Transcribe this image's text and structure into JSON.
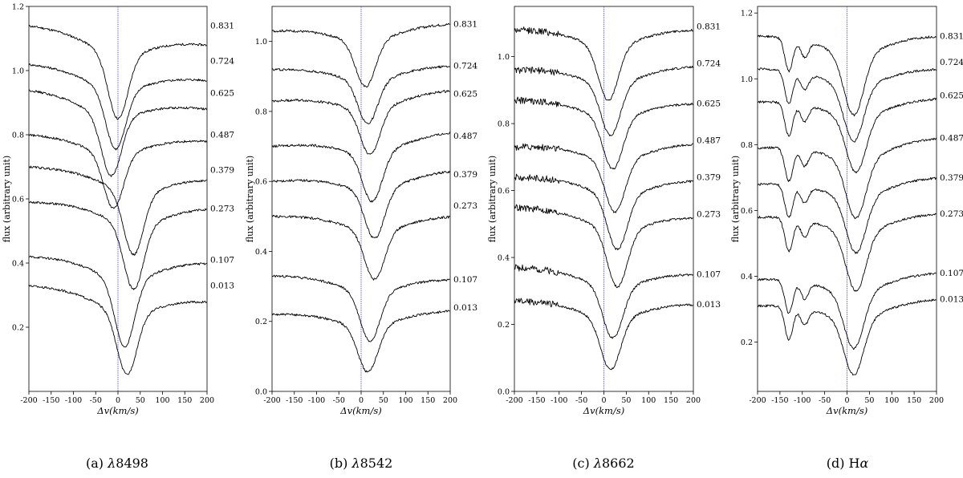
{
  "chart_data": [
    {
      "type": "line",
      "caption": "(a) λ8498",
      "caption_prefix": "(a) ",
      "caption_symbol": "λ",
      "caption_suffix": "8498",
      "xlabel": "Δv(km/s)",
      "ylabel": "flux (arbitrary unit)",
      "xlim": [
        -200,
        200
      ],
      "ylim": [
        0,
        1.2
      ],
      "xticks": [
        -200,
        -150,
        -100,
        -50,
        0,
        50,
        100,
        150,
        200
      ],
      "yticks": [
        0.2,
        0.4,
        0.6,
        0.8,
        1.0,
        1.2
      ],
      "ytick_labels": [
        "0.2",
        "0.4",
        "0.6",
        "0.8",
        "1.0",
        "1.2"
      ],
      "reference_line_x": 0,
      "line_center": 25,
      "line_width": 25,
      "series": [
        {
          "name": "0.831",
          "continuum": 1.14,
          "continuum_right": 1.08,
          "depth": 0.26,
          "center": 0,
          "label_y": 1.14
        },
        {
          "name": "0.724",
          "continuum": 1.02,
          "continuum_right": 0.97,
          "depth": 0.24,
          "center": -5,
          "label_y": 1.03
        },
        {
          "name": "0.625",
          "continuum": 0.94,
          "continuum_right": 0.88,
          "depth": 0.24,
          "center": -15,
          "label_y": 0.93
        },
        {
          "name": "0.487",
          "continuum": 0.8,
          "continuum_right": 0.78,
          "depth": 0.22,
          "center": -10,
          "label_y": 0.8
        },
        {
          "name": "0.379",
          "continuum": 0.7,
          "continuum_right": 0.66,
          "depth": 0.25,
          "center": 35,
          "label_y": 0.69
        },
        {
          "name": "0.273",
          "continuum": 0.59,
          "continuum_right": 0.57,
          "depth": 0.26,
          "center": 35,
          "label_y": 0.57
        },
        {
          "name": "0.107",
          "continuum": 0.42,
          "continuum_right": 0.4,
          "depth": 0.27,
          "center": 15,
          "label_y": 0.41
        },
        {
          "name": "0.013",
          "continuum": 0.33,
          "continuum_right": 0.28,
          "depth": 0.25,
          "center": 20,
          "label_y": 0.33
        }
      ]
    },
    {
      "type": "line",
      "caption": "(b) λ8542",
      "caption_prefix": "(b) ",
      "caption_symbol": "λ",
      "caption_suffix": "8542",
      "xlabel": "Δv(km/s)",
      "ylabel": "flux (arbitrary unit)",
      "xlim": [
        -200,
        200
      ],
      "ylim": [
        0,
        1.1
      ],
      "xticks": [
        -200,
        -150,
        -100,
        -50,
        0,
        50,
        100,
        150,
        200
      ],
      "yticks": [
        0.0,
        0.2,
        0.4,
        0.6,
        0.8,
        1.0
      ],
      "ytick_labels": [
        "0.0",
        "0.2",
        "0.4",
        "0.6",
        "0.8",
        "1.0"
      ],
      "reference_line_x": 0,
      "series": [
        {
          "name": "0.831",
          "continuum": 1.03,
          "continuum_right": 1.05,
          "depth": 0.17,
          "center": 10,
          "label_y": 1.05
        },
        {
          "name": "0.724",
          "continuum": 0.92,
          "continuum_right": 0.93,
          "depth": 0.16,
          "center": 15,
          "label_y": 0.93
        },
        {
          "name": "0.625",
          "continuum": 0.83,
          "continuum_right": 0.86,
          "depth": 0.17,
          "center": 20,
          "label_y": 0.85
        },
        {
          "name": "0.487",
          "continuum": 0.7,
          "continuum_right": 0.74,
          "depth": 0.18,
          "center": 25,
          "label_y": 0.73
        },
        {
          "name": "0.379",
          "continuum": 0.6,
          "continuum_right": 0.63,
          "depth": 0.18,
          "center": 30,
          "label_y": 0.62
        },
        {
          "name": "0.273",
          "continuum": 0.5,
          "continuum_right": 0.5,
          "depth": 0.18,
          "center": 30,
          "label_y": 0.53
        },
        {
          "name": "0.107",
          "continuum": 0.33,
          "continuum_right": 0.32,
          "depth": 0.18,
          "center": 20,
          "label_y": 0.32
        },
        {
          "name": "0.013",
          "continuum": 0.22,
          "continuum_right": 0.23,
          "depth": 0.17,
          "center": 15,
          "label_y": 0.24
        }
      ]
    },
    {
      "type": "line",
      "caption": "(c) λ8662",
      "caption_prefix": "(c) ",
      "caption_symbol": "λ",
      "caption_suffix": "8662",
      "xlabel": "Δv(km/s)",
      "ylabel": "flux (arbitrary unit)",
      "xlim": [
        -200,
        200
      ],
      "ylim": [
        0,
        1.15
      ],
      "xticks": [
        -200,
        -150,
        -100,
        -50,
        0,
        50,
        100,
        150,
        200
      ],
      "yticks": [
        0.0,
        0.2,
        0.4,
        0.6,
        0.8,
        1.0
      ],
      "ytick_labels": [
        "0.0",
        "0.2",
        "0.4",
        "0.6",
        "0.8",
        "1.0"
      ],
      "reference_line_x": 0,
      "series": [
        {
          "name": "0.831",
          "continuum": 1.08,
          "continuum_right": 1.08,
          "depth": 0.21,
          "center": 10,
          "label_y": 1.09
        },
        {
          "name": "0.724",
          "continuum": 0.96,
          "continuum_right": 0.97,
          "depth": 0.2,
          "center": 15,
          "label_y": 0.98
        },
        {
          "name": "0.625",
          "continuum": 0.87,
          "continuum_right": 0.86,
          "depth": 0.2,
          "center": 20,
          "label_y": 0.86
        },
        {
          "name": "0.487",
          "continuum": 0.73,
          "continuum_right": 0.74,
          "depth": 0.2,
          "center": 25,
          "label_y": 0.75
        },
        {
          "name": "0.379",
          "continuum": 0.64,
          "continuum_right": 0.63,
          "depth": 0.21,
          "center": 30,
          "label_y": 0.64
        },
        {
          "name": "0.273",
          "continuum": 0.55,
          "continuum_right": 0.52,
          "depth": 0.22,
          "center": 30,
          "label_y": 0.53
        },
        {
          "name": "0.107",
          "continuum": 0.37,
          "continuum_right": 0.35,
          "depth": 0.2,
          "center": 20,
          "label_y": 0.35
        },
        {
          "name": "0.013",
          "continuum": 0.27,
          "continuum_right": 0.26,
          "depth": 0.2,
          "center": 15,
          "label_y": 0.26
        }
      ]
    },
    {
      "type": "line",
      "caption": "(d) Hα",
      "caption_prefix": "(d) H",
      "caption_symbol": "α",
      "caption_suffix": "",
      "xlabel": "Δv(km/s)",
      "ylabel": "flux (arbitrary unit)",
      "xlim": [
        -200,
        200
      ],
      "ylim": [
        0.05,
        1.22
      ],
      "xticks": [
        -200,
        -150,
        -100,
        -50,
        0,
        50,
        100,
        150,
        200
      ],
      "yticks": [
        0.2,
        0.4,
        0.6,
        0.8,
        1.0,
        1.2
      ],
      "ytick_labels": [
        "0.2",
        "0.4",
        "0.6",
        "0.8",
        "1.0",
        "1.2"
      ],
      "reference_line_x": 0,
      "series": [
        {
          "name": "0.831",
          "continuum": 1.13,
          "continuum_right": 1.13,
          "depth": 0.24,
          "center": 15,
          "label_y": 1.13
        },
        {
          "name": "0.724",
          "continuum": 1.03,
          "continuum_right": 1.03,
          "depth": 0.22,
          "center": 15,
          "label_y": 1.05
        },
        {
          "name": "0.625",
          "continuum": 0.93,
          "continuum_right": 0.94,
          "depth": 0.22,
          "center": 20,
          "label_y": 0.95
        },
        {
          "name": "0.487",
          "continuum": 0.79,
          "continuum_right": 0.82,
          "depth": 0.23,
          "center": 20,
          "label_y": 0.82
        },
        {
          "name": "0.379",
          "continuum": 0.68,
          "continuum_right": 0.7,
          "depth": 0.22,
          "center": 20,
          "label_y": 0.7
        },
        {
          "name": "0.273",
          "continuum": 0.58,
          "continuum_right": 0.59,
          "depth": 0.23,
          "center": 20,
          "label_y": 0.59
        },
        {
          "name": "0.107",
          "continuum": 0.39,
          "continuum_right": 0.41,
          "depth": 0.22,
          "center": 15,
          "label_y": 0.41
        },
        {
          "name": "0.013",
          "continuum": 0.31,
          "continuum_right": 0.33,
          "depth": 0.22,
          "center": 15,
          "label_y": 0.33
        }
      ]
    }
  ],
  "colors": {
    "axis": "#000000",
    "series_line": "#000000",
    "reference_line": "#3b3bff"
  }
}
